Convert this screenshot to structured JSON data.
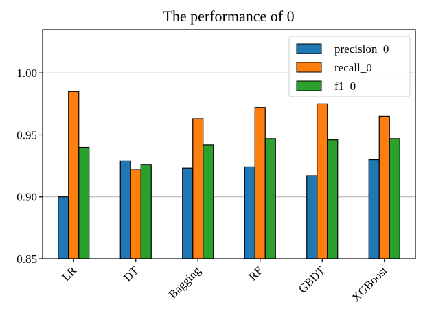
{
  "chart_data": {
    "type": "bar",
    "title": "The performance of 0",
    "xlabel": "",
    "ylabel": "",
    "categories": [
      "LR",
      "DT",
      "Bagging",
      "RF",
      "GBDT",
      "XGBoost"
    ],
    "series": [
      {
        "name": "precision_0",
        "color": "#1f77b4",
        "values": [
          0.9,
          0.929,
          0.923,
          0.924,
          0.917,
          0.93
        ]
      },
      {
        "name": "recall_0",
        "color": "#ff7f0e",
        "values": [
          0.985,
          0.922,
          0.963,
          0.972,
          0.975,
          0.965
        ]
      },
      {
        "name": "f1_0",
        "color": "#2ca02c",
        "values": [
          0.94,
          0.926,
          0.942,
          0.947,
          0.946,
          0.947
        ]
      }
    ],
    "ylim": [
      0.85,
      1.035
    ],
    "yticks": [
      "0.85",
      "0.90",
      "0.95",
      "1.00"
    ],
    "grid": "horizontal",
    "legend_position": "top-right",
    "x_tick_rotation": 45
  }
}
